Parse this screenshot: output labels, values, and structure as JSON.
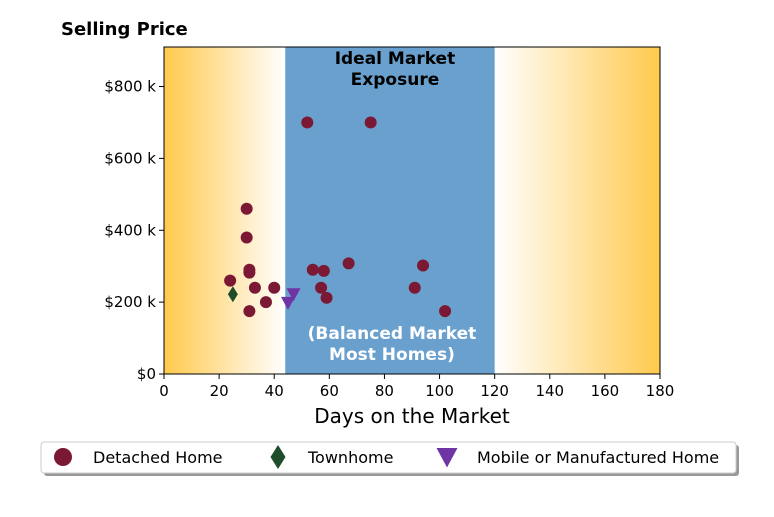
{
  "chart_data": {
    "type": "scatter",
    "title": "Selling Price",
    "xlabel": "Days on the Market",
    "ylabel": "",
    "xlim": [
      0,
      180
    ],
    "ylim": [
      0,
      910000
    ],
    "x_ticks": [
      0,
      20,
      40,
      60,
      80,
      100,
      120,
      140,
      160,
      180
    ],
    "x_tick_labels": [
      "0",
      "20",
      "40",
      "60",
      "80",
      "100",
      "120",
      "140",
      "160",
      "180"
    ],
    "y_ticks": [
      0,
      200000,
      400000,
      600000,
      800000
    ],
    "y_tick_labels": [
      "$0",
      "$200 k",
      "$400 k",
      "$600 k",
      "$800 k"
    ],
    "grid": false,
    "background": {
      "gradient_color": "#ffc94d",
      "fade_color": "#ffffff",
      "band": {
        "x_start": 44,
        "x_end": 120,
        "color": "#6aa0ce"
      }
    },
    "annotations": {
      "top": [
        "Ideal Market",
        "Exposure"
      ],
      "bottom": [
        "(Balanced Market",
        "Most Homes)"
      ]
    },
    "series": [
      {
        "name": "Detached Home",
        "marker": "circle",
        "color": "#7b1834",
        "x": [
          24,
          30,
          30,
          31,
          31,
          31,
          33,
          37,
          40,
          52,
          54,
          57,
          58,
          59,
          67,
          75,
          91,
          94,
          102
        ],
        "y": [
          260000,
          460000,
          380000,
          290000,
          282000,
          175000,
          240000,
          200000,
          240000,
          700000,
          290000,
          240000,
          287000,
          212000,
          308000,
          700000,
          240000,
          302000,
          175000
        ]
      },
      {
        "name": "Townhome",
        "marker": "diamond",
        "color": "#1e4d2b",
        "x": [
          25
        ],
        "y": [
          222000
        ]
      },
      {
        "name": "Mobile or Manufactured Home",
        "marker": "triangle-down",
        "color": "#6f35a5",
        "x": [
          45,
          47
        ],
        "y": [
          198000,
          222000
        ]
      }
    ],
    "legend": {
      "position": "bottom-center",
      "entries": [
        "Detached Home",
        "Townhome",
        "Mobile or Manufactured Home"
      ]
    }
  }
}
